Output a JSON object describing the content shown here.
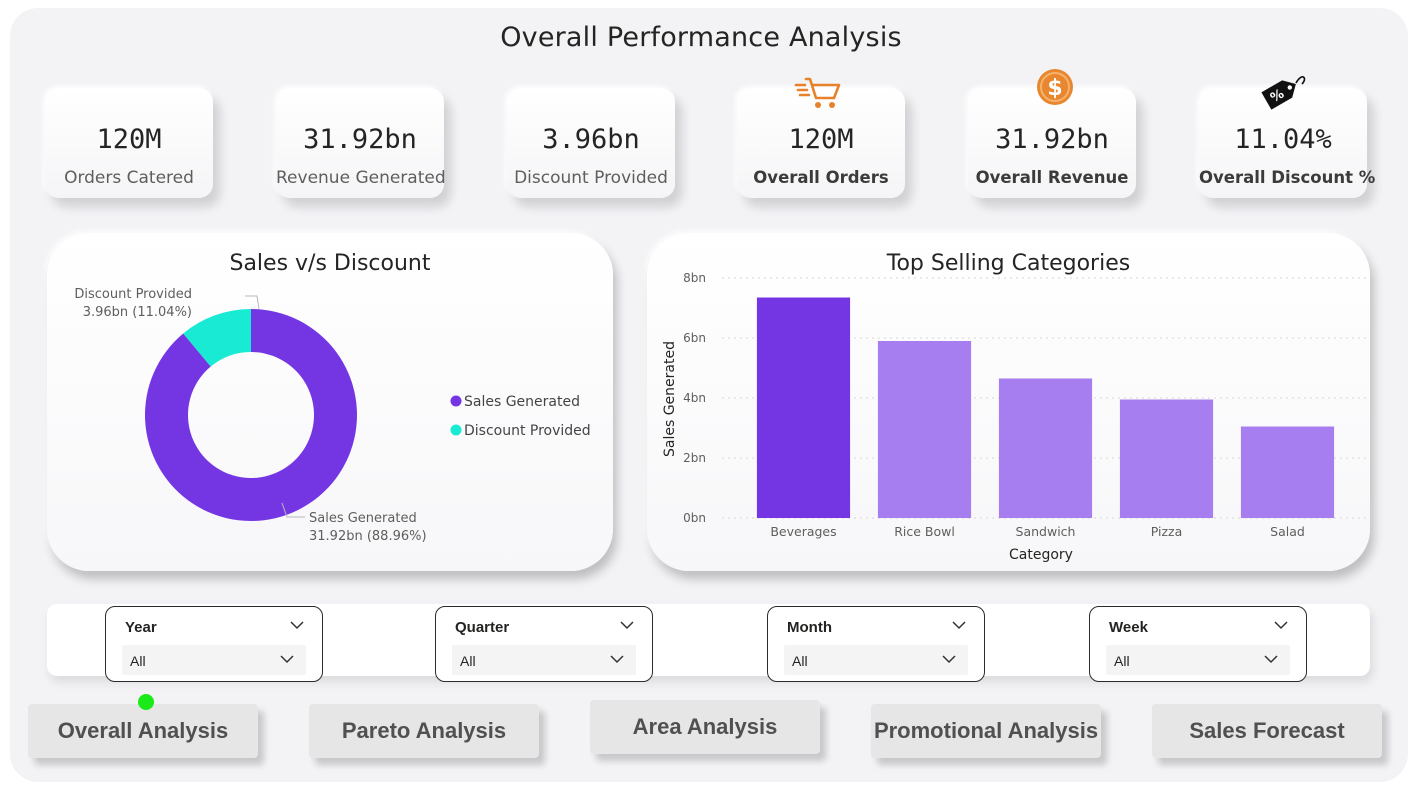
{
  "page_title": "Overall Performance Analysis",
  "kpis": [
    {
      "value": "120M",
      "label": "Orders Catered"
    },
    {
      "value": "31.92bn",
      "label": "Revenue Generated"
    },
    {
      "value": "3.96bn",
      "label": "Discount Provided"
    },
    {
      "value": "120M",
      "label": "Overall Orders",
      "icon": "shopping-cart-icon"
    },
    {
      "value": "31.92bn",
      "label": "Overall Revenue",
      "icon": "dollar-coin-icon"
    },
    {
      "value": "11.04%",
      "label": "Overall Discount %",
      "icon": "discount-tag-icon"
    }
  ],
  "colors": {
    "sales": "#7436e3",
    "discount": "#19ead4",
    "bar_highlight": "#7436e3",
    "bar_normal": "#a67ef0",
    "cart_icon": "#e8822a",
    "coin": "#e8872f",
    "active_dot": "#1bea19"
  },
  "donut": {
    "title": "Sales v/s Discount",
    "legend": [
      "Sales Generated",
      "Discount Provided"
    ],
    "label_sales_name": "Sales Generated",
    "label_sales_value": "31.92bn (88.96%)",
    "label_discount_name": "Discount Provided",
    "label_discount_value": "3.96bn (11.04%)"
  },
  "bar_chart": {
    "title": "Top Selling Categories"
  },
  "chart_data": [
    {
      "type": "pie",
      "title": "Sales v/s Discount",
      "labels": [
        "Sales Generated",
        "Discount Provided"
      ],
      "values": [
        31.92,
        3.96
      ],
      "percent": [
        88.96,
        11.04
      ],
      "unit": "bn",
      "legend": "right"
    },
    {
      "type": "bar",
      "title": "Top Selling Categories",
      "categories": [
        "Beverages",
        "Rice Bowl",
        "Sandwich",
        "Pizza",
        "Salad"
      ],
      "values": [
        7.35,
        5.9,
        4.65,
        3.95,
        3.05
      ],
      "xlabel": "Category",
      "ylabel": "Sales Generated",
      "ylim": [
        0,
        8
      ],
      "yticks": [
        "0bn",
        "2bn",
        "4bn",
        "6bn",
        "8bn"
      ],
      "ytick_values": [
        0,
        2,
        4,
        6,
        8
      ],
      "grid": true
    }
  ],
  "slicers": [
    {
      "title": "Year",
      "value": "All"
    },
    {
      "title": "Quarter",
      "value": "All"
    },
    {
      "title": "Month",
      "value": "All"
    },
    {
      "title": "Week",
      "value": "All"
    }
  ],
  "nav": [
    {
      "label": "Overall Analysis",
      "active": true
    },
    {
      "label": "Pareto Analysis"
    },
    {
      "label": "Area Analysis"
    },
    {
      "label": "Promotional Analysis"
    },
    {
      "label": "Sales Forecast"
    }
  ]
}
